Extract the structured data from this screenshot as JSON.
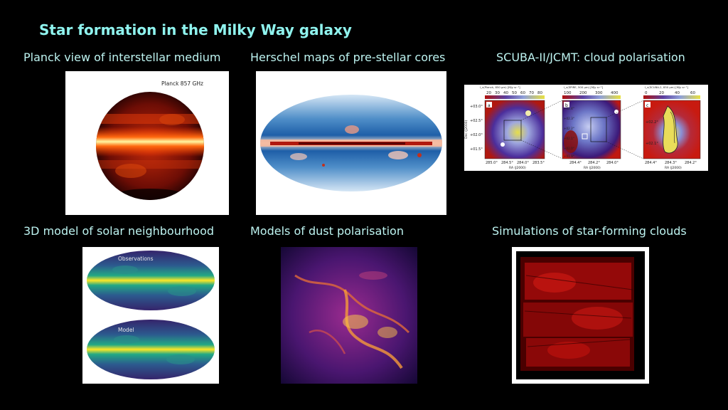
{
  "slide": {
    "title": "Star formation in the Milky Way galaxy",
    "panels": {
      "planck": {
        "caption": "Planck view of interstellar medium",
        "inner_label": "Planck 857 GHz"
      },
      "herschel": {
        "caption": "Herschel maps of pre-stellar cores"
      },
      "scuba": {
        "caption": "SCUBA-II/JCMT: cloud polarisation",
        "subpanel_a": {
          "letter": "a",
          "scale_title": "I_v(Planck, 850 μm) [MJy sr⁻¹]",
          "scale_ticks": [
            "20",
            "30",
            "40",
            "50",
            "60",
            "70",
            "80"
          ],
          "dec_ticks": [
            "+03.0°",
            "+02.5°",
            "+02.0°",
            "+01.5°"
          ],
          "ra_ticks": [
            "285.0°",
            "284.5°",
            "284.0°",
            "283.5°"
          ],
          "dec_label": "Dec (J2000)",
          "ra_label": "RA (J2000)"
        },
        "subpanel_b": {
          "letter": "b",
          "scale_title": "I_v(SPIRE, 500 μm) [MJy sr⁻¹]",
          "scale_ticks": [
            "100",
            "200",
            "300",
            "400"
          ],
          "dec_ticks": [
            "+02.4°",
            "+02.3°",
            "+02.2°",
            "+02.1°",
            "+02.0°",
            "+01.9°"
          ],
          "ra_ticks": [
            "284.4°",
            "284.2°",
            "284.0°"
          ],
          "ra_label": "RA (J2000)"
        },
        "subpanel_c": {
          "letter": "c",
          "scale_title": "I_v(SCUBA-2, 850 μm) [MJy sr⁻¹]",
          "scale_ticks": [
            "0",
            "20",
            "40",
            "60"
          ],
          "dec_ticks": [
            "+02.2°",
            "+02.1°"
          ],
          "ra_ticks": [
            "284.4°",
            "284.3°",
            "284.2°"
          ],
          "ra_label": "RA (J2000)"
        }
      },
      "solar": {
        "caption": "3D model of solar neighbourhood",
        "top_label": "Observations",
        "bottom_label": "Model"
      },
      "dust": {
        "caption": "Models of dust polarisation"
      },
      "sims": {
        "caption": "Simulations of star-forming clouds"
      }
    }
  }
}
